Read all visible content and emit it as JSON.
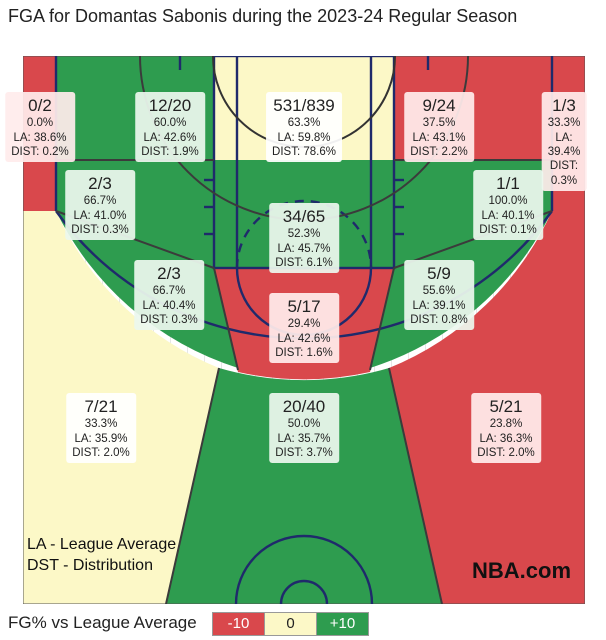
{
  "title": "FGA for Domantas Sabonis during the 2023-24 Regular Season",
  "colors": {
    "below": "#d9484c",
    "average": "#fcf8c7",
    "above": "#2e9c4f",
    "court_line": "#1f2a6b",
    "background_stripe": "#e8e8e8"
  },
  "chart_data": {
    "type": "shot_chart",
    "title": "FGA for Domantas Sabonis during the 2023-24 Regular Season",
    "zones": [
      {
        "id": "left-corner-3",
        "made": 0,
        "att": 2,
        "fg_text": "0/2",
        "pct_text": "0.0%",
        "la_text": "LA: 38.6%",
        "dist_text": "DIST: 0.2%",
        "comparison": "below"
      },
      {
        "id": "left-wing-mid-upper",
        "made": 12,
        "att": 20,
        "fg_text": "12/20",
        "pct_text": "60.0%",
        "la_text": "LA: 42.6%",
        "dist_text": "DIST: 1.9%",
        "comparison": "above"
      },
      {
        "id": "restricted-area",
        "made": 531,
        "att": 839,
        "fg_text": "531/839",
        "pct_text": "63.3%",
        "la_text": "LA: 59.8%",
        "dist_text": "DIST: 78.6%",
        "comparison": "average"
      },
      {
        "id": "right-wing-mid-upper",
        "made": 9,
        "att": 24,
        "fg_text": "9/24",
        "pct_text": "37.5%",
        "la_text": "LA: 43.1%",
        "dist_text": "DIST: 2.2%",
        "comparison": "below"
      },
      {
        "id": "right-corner-3",
        "made": 1,
        "att": 3,
        "fg_text": "1/3",
        "pct_text": "33.3%",
        "la_text": "LA: 39.4%",
        "dist_text": "DIST: 0.3%",
        "comparison": "below"
      },
      {
        "id": "left-baseline-mid",
        "made": 2,
        "att": 3,
        "fg_text": "2/3",
        "pct_text": "66.7%",
        "la_text": "LA: 41.0%",
        "dist_text": "DIST: 0.3%",
        "comparison": "above"
      },
      {
        "id": "paint-non-ra",
        "made": 34,
        "att": 65,
        "fg_text": "34/65",
        "pct_text": "52.3%",
        "la_text": "LA: 45.7%",
        "dist_text": "DIST: 6.1%",
        "comparison": "above"
      },
      {
        "id": "right-baseline-mid",
        "made": 1,
        "att": 1,
        "fg_text": "1/1",
        "pct_text": "100.0%",
        "la_text": "LA: 40.1%",
        "dist_text": "DIST: 0.1%",
        "comparison": "above"
      },
      {
        "id": "left-elbow-mid",
        "made": 2,
        "att": 3,
        "fg_text": "2/3",
        "pct_text": "66.7%",
        "la_text": "LA: 40.4%",
        "dist_text": "DIST: 0.3%",
        "comparison": "above"
      },
      {
        "id": "top-key-mid",
        "made": 5,
        "att": 17,
        "fg_text": "5/17",
        "pct_text": "29.4%",
        "la_text": "LA: 42.6%",
        "dist_text": "DIST: 1.6%",
        "comparison": "below"
      },
      {
        "id": "right-elbow-mid",
        "made": 5,
        "att": 9,
        "fg_text": "5/9",
        "pct_text": "55.6%",
        "la_text": "LA: 39.1%",
        "dist_text": "DIST: 0.8%",
        "comparison": "above"
      },
      {
        "id": "left-wing-3",
        "made": 7,
        "att": 21,
        "fg_text": "7/21",
        "pct_text": "33.3%",
        "la_text": "LA: 35.9%",
        "dist_text": "DIST: 2.0%",
        "comparison": "average"
      },
      {
        "id": "top-of-key-3",
        "made": 20,
        "att": 40,
        "fg_text": "20/40",
        "pct_text": "50.0%",
        "la_text": "LA: 35.7%",
        "dist_text": "DIST: 3.7%",
        "comparison": "above"
      },
      {
        "id": "right-wing-3",
        "made": 5,
        "att": 21,
        "fg_text": "5/21",
        "pct_text": "23.8%",
        "la_text": "LA: 36.3%",
        "dist_text": "DIST: 2.0%",
        "comparison": "below"
      }
    ]
  },
  "legend": {
    "line1": "LA - League Average",
    "line2": "DST - Distribution",
    "logo": "NBA.com",
    "key_title": "FG% vs League Average",
    "key_items": [
      {
        "label": "-10",
        "level": "below"
      },
      {
        "label": "0",
        "level": "average"
      },
      {
        "label": "+10",
        "level": "above"
      }
    ]
  }
}
